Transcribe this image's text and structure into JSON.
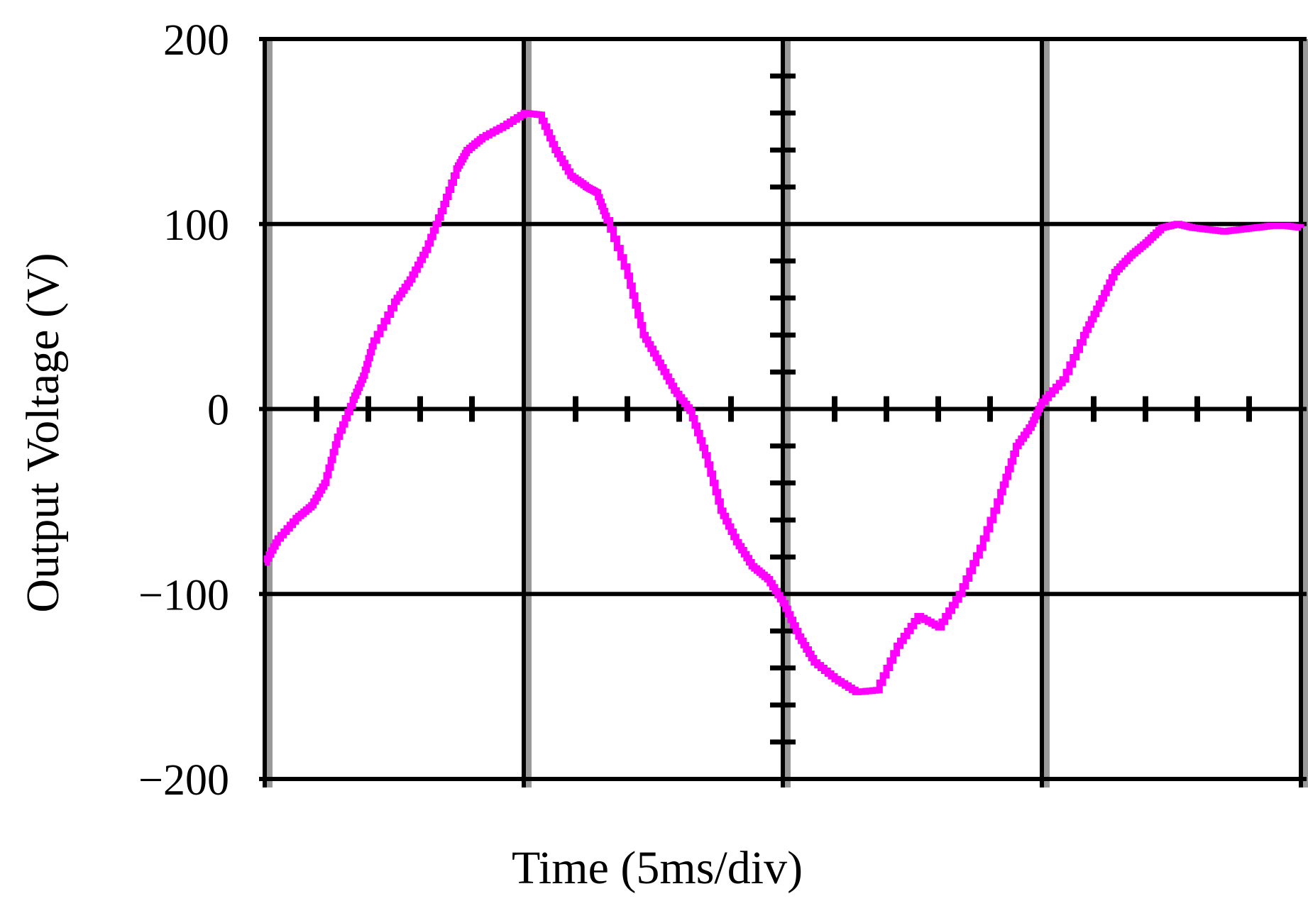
{
  "chart_data": {
    "type": "line",
    "title": "",
    "xlabel": "Time (5ms/div)",
    "ylabel": "Output Voltage (V)",
    "xlim": [
      0,
      20
    ],
    "ylim": [
      -200,
      200
    ],
    "yticks": [
      200,
      100,
      0,
      -100,
      -200
    ],
    "ytick_labels": [
      "200",
      "100",
      "0",
      "−100",
      "−200"
    ],
    "x_divisions": 4,
    "grid": true,
    "line_color": "#ff00ff",
    "series": [
      {
        "x": [
          0,
          0.25,
          0.6,
          0.9,
          1.15,
          1.4,
          1.7,
          1.9,
          2.1,
          2.5,
          2.8,
          3.1,
          3.4,
          3.7,
          3.9,
          4.2,
          4.6,
          5.0,
          5.3,
          5.6,
          5.9,
          6.2,
          6.4,
          6.6,
          7.0,
          7.3,
          7.6,
          7.9,
          8.2,
          8.5,
          8.8,
          9.1,
          9.4,
          9.7,
          10.0,
          10.3,
          10.6,
          11.0,
          11.4,
          11.8,
          12.2,
          12.6,
          13.0,
          13.4,
          13.8,
          14.2,
          14.5,
          14.8,
          15.0,
          15.4,
          15.8,
          16.1,
          16.4,
          16.7,
          17.0,
          17.3,
          17.6,
          17.9,
          18.2,
          18.5,
          18.8,
          19.1,
          19.4,
          19.7,
          20.0
        ],
        "values": [
          -83,
          -70,
          -59,
          -52,
          -40,
          -15,
          5,
          18,
          37,
          58,
          70,
          86,
          107,
          130,
          140,
          147,
          153,
          160,
          159,
          140,
          126,
          120,
          117,
          102,
          72,
          40,
          25,
          10,
          -1,
          -25,
          -55,
          -72,
          -85,
          -92,
          -105,
          -123,
          -137,
          -146,
          -153,
          -152,
          -128,
          -112,
          -118,
          -100,
          -75,
          -45,
          -20,
          -8,
          4,
          16,
          40,
          57,
          74,
          83,
          90,
          98,
          100,
          98,
          97,
          96,
          97,
          98,
          99,
          99,
          98
        ]
      }
    ]
  }
}
